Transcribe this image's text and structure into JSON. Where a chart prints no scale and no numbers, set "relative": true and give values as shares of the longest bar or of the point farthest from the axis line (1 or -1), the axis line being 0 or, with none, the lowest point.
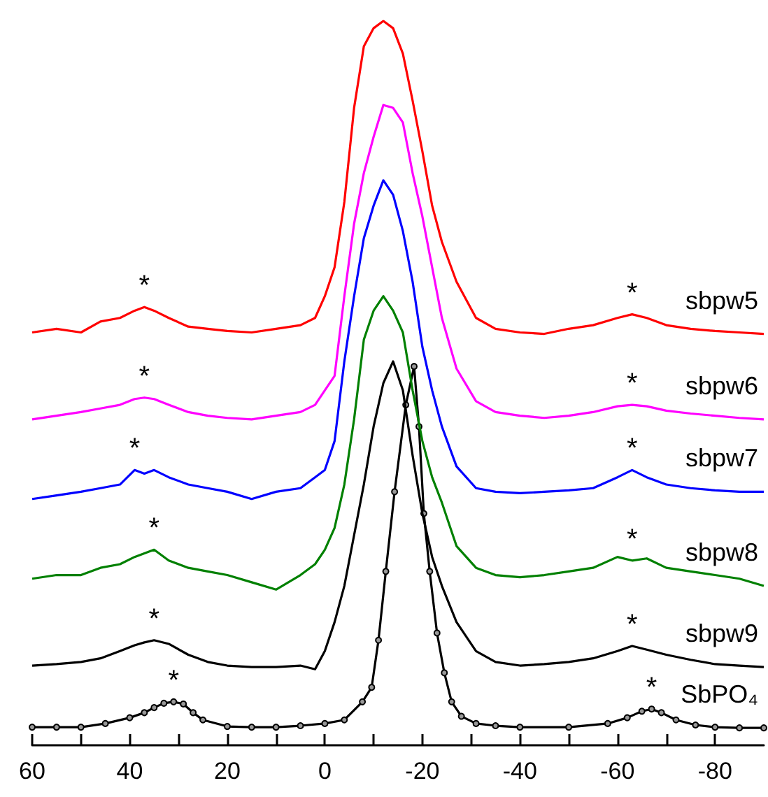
{
  "chart_data": {
    "type": "line",
    "relative": true,
    "marker": "none",
    "legend": false,
    "grid": false,
    "xlim": [
      60,
      -90
    ],
    "xticks": [
      60,
      {
        "value": 50,
        "label": null
      },
      40,
      {
        "value": 30,
        "label": null
      },
      20,
      {
        "value": 10,
        "label": null
      },
      0,
      {
        "value": -10,
        "label": null
      },
      -20,
      {
        "value": -30,
        "label": null
      },
      -40,
      {
        "value": -50,
        "label": null
      },
      -60,
      {
        "value": -70,
        "label": null
      },
      -80
    ],
    "x": [
      60,
      55,
      50,
      46,
      42,
      39,
      37,
      35,
      32,
      28,
      24,
      20,
      15,
      10,
      5,
      2,
      0,
      -2,
      -4,
      -6,
      -8,
      -10,
      -12,
      -14,
      -16,
      -18,
      -20,
      -22,
      -24,
      -27,
      -31,
      -35,
      -40,
      -45,
      -50,
      -55,
      -60,
      -63,
      -66,
      -70,
      -75,
      -80,
      -85,
      -90
    ],
    "series": [
      {
        "name": "sbpw5",
        "color": "#ff0000",
        "values": [
          0.57,
          0.575,
          0.57,
          0.585,
          0.59,
          0.6,
          0.605,
          0.6,
          0.59,
          0.578,
          0.575,
          0.572,
          0.57,
          0.575,
          0.58,
          0.59,
          0.62,
          0.66,
          0.75,
          0.88,
          0.965,
          0.99,
          1.0,
          0.99,
          0.955,
          0.89,
          0.82,
          0.745,
          0.695,
          0.64,
          0.59,
          0.575,
          0.57,
          0.568,
          0.575,
          0.58,
          0.59,
          0.595,
          0.59,
          0.58,
          0.575,
          0.572,
          0.57,
          0.568
        ]
      },
      {
        "name": "sbpw6",
        "color": "#ff00ff",
        "values": [
          0.45,
          0.455,
          0.46,
          0.465,
          0.47,
          0.478,
          0.48,
          0.478,
          0.47,
          0.46,
          0.455,
          0.452,
          0.45,
          0.455,
          0.46,
          0.47,
          0.49,
          0.51,
          0.62,
          0.72,
          0.79,
          0.84,
          0.884,
          0.88,
          0.86,
          0.79,
          0.73,
          0.66,
          0.59,
          0.52,
          0.475,
          0.46,
          0.455,
          0.452,
          0.455,
          0.46,
          0.468,
          0.47,
          0.468,
          0.462,
          0.458,
          0.455,
          0.452,
          0.45
        ]
      },
      {
        "name": "sbpw7",
        "color": "#0000ff",
        "values": [
          0.34,
          0.345,
          0.35,
          0.355,
          0.36,
          0.38,
          0.375,
          0.38,
          0.37,
          0.36,
          0.355,
          0.35,
          0.34,
          0.35,
          0.355,
          0.37,
          0.38,
          0.42,
          0.53,
          0.62,
          0.7,
          0.745,
          0.78,
          0.76,
          0.71,
          0.64,
          0.55,
          0.49,
          0.44,
          0.385,
          0.355,
          0.35,
          0.348,
          0.35,
          0.352,
          0.355,
          0.37,
          0.38,
          0.37,
          0.36,
          0.355,
          0.352,
          0.35,
          0.35
        ]
      },
      {
        "name": "sbpw8",
        "color": "#008000",
        "values": [
          0.23,
          0.235,
          0.235,
          0.245,
          0.25,
          0.26,
          0.265,
          0.27,
          0.255,
          0.245,
          0.24,
          0.235,
          0.225,
          0.215,
          0.235,
          0.25,
          0.27,
          0.3,
          0.36,
          0.45,
          0.56,
          0.6,
          0.62,
          0.6,
          0.57,
          0.49,
          0.42,
          0.37,
          0.335,
          0.275,
          0.245,
          0.235,
          0.232,
          0.235,
          0.24,
          0.245,
          0.26,
          0.255,
          0.258,
          0.245,
          0.24,
          0.235,
          0.23,
          0.22
        ]
      },
      {
        "name": "sbpw9",
        "color": "#000000",
        "values": [
          0.11,
          0.112,
          0.115,
          0.12,
          0.13,
          0.138,
          0.142,
          0.145,
          0.14,
          0.125,
          0.115,
          0.11,
          0.108,
          0.108,
          0.11,
          0.105,
          0.13,
          0.17,
          0.22,
          0.29,
          0.36,
          0.44,
          0.5,
          0.53,
          0.49,
          0.4,
          0.32,
          0.26,
          0.22,
          0.17,
          0.13,
          0.115,
          0.11,
          0.112,
          0.115,
          0.12,
          0.13,
          0.137,
          0.132,
          0.125,
          0.118,
          0.112,
          0.11,
          0.108
        ]
      },
      {
        "name": "SbPO₄",
        "color": "#000000",
        "marker": "circle",
        "x": [
          60,
          55,
          50,
          45,
          40,
          37,
          35,
          33,
          31,
          29,
          27,
          25,
          20,
          15,
          10,
          5,
          0,
          -4,
          -7.7,
          -9.6,
          -11,
          -12.5,
          -14.3,
          -16.6,
          -18.3,
          -19.3,
          -20.3,
          -21.5,
          -23,
          -24.5,
          -26,
          -28,
          -31,
          -35,
          -40,
          -50,
          -58,
          -62,
          -65,
          -67,
          -69,
          -72,
          -76,
          -80,
          -85,
          -90
        ],
        "values": [
          0.025,
          0.025,
          0.025,
          0.03,
          0.038,
          0.045,
          0.052,
          0.058,
          0.06,
          0.057,
          0.045,
          0.035,
          0.026,
          0.025,
          0.025,
          0.027,
          0.03,
          0.035,
          0.06,
          0.08,
          0.145,
          0.24,
          0.35,
          0.47,
          0.523,
          0.44,
          0.32,
          0.24,
          0.155,
          0.1,
          0.06,
          0.04,
          0.03,
          0.027,
          0.025,
          0.025,
          0.03,
          0.038,
          0.047,
          0.05,
          0.045,
          0.035,
          0.028,
          0.025,
          0.024,
          0.024
        ]
      }
    ],
    "annotations": [
      {
        "text": "*",
        "x": 37,
        "y": 0.605
      },
      {
        "text": "*",
        "x": -63,
        "y": 0.595
      },
      {
        "text": "*",
        "x": 37,
        "y": 0.48
      },
      {
        "text": "*",
        "x": -63,
        "y": 0.47
      },
      {
        "text": "*",
        "x": 39,
        "y": 0.38
      },
      {
        "text": "*",
        "x": -63,
        "y": 0.38
      },
      {
        "text": "*",
        "x": 35,
        "y": 0.27
      },
      {
        "text": "*",
        "x": -63,
        "y": 0.255
      },
      {
        "text": "*",
        "x": 35,
        "y": 0.145
      },
      {
        "text": "*",
        "x": -63,
        "y": 0.137
      },
      {
        "text": "*",
        "x": 31,
        "y": 0.06
      },
      {
        "text": "*",
        "x": -67,
        "y": 0.05
      }
    ]
  }
}
